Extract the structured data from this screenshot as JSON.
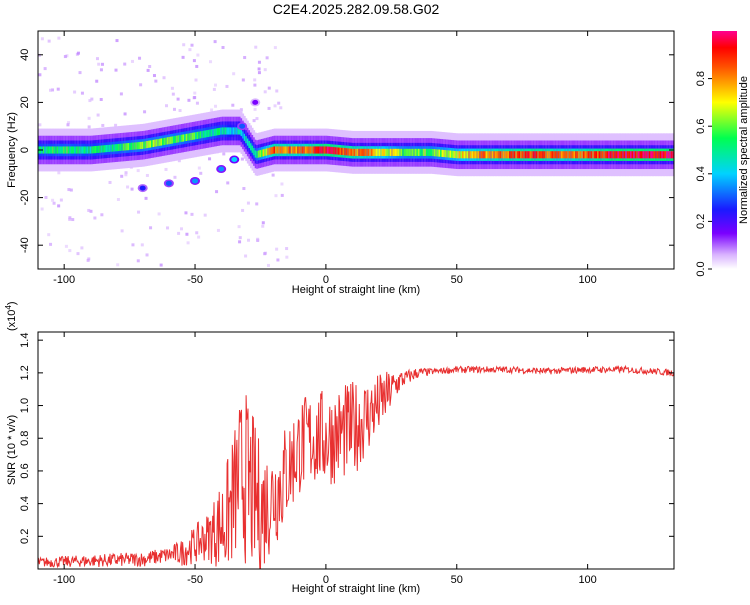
{
  "figure_title": "C2E4.2025.282.09.58.G02",
  "colors": {
    "snr_line": "#e83030",
    "background": "#ffffff",
    "axis": "#000000"
  },
  "chart_data": [
    {
      "type": "heatmap",
      "name": "spectrogram",
      "title": "C2E4.2025.282.09.58.G02",
      "xlabel": "Height of straight line (km)",
      "ylabel": "Frequency (Hz)",
      "xlim": [
        -110,
        133
      ],
      "ylim": [
        -50,
        50
      ],
      "x_ticks": [
        -100,
        -50,
        0,
        50,
        100
      ],
      "y_ticks": [
        -40,
        -20,
        0,
        20,
        40
      ],
      "colorbar": {
        "label": "Normalized spectral amplitude",
        "range": [
          0,
          1
        ],
        "ticks": [
          "0.0",
          "0.2",
          "0.4",
          "0.6",
          "0.8"
        ],
        "tick_values": [
          0,
          0.2,
          0.4,
          0.6,
          0.8
        ]
      },
      "ridge": [
        {
          "x": -110,
          "freq": 0,
          "amp": 0.5
        },
        {
          "x": -100,
          "freq": 0,
          "amp": 0.55
        },
        {
          "x": -90,
          "freq": 0,
          "amp": 0.5
        },
        {
          "x": -80,
          "freq": 1,
          "amp": 0.55
        },
        {
          "x": -70,
          "freq": 2,
          "amp": 0.6
        },
        {
          "x": -60,
          "freq": 4,
          "amp": 0.6
        },
        {
          "x": -50,
          "freq": 6,
          "amp": 0.55
        },
        {
          "x": -40,
          "freq": 8,
          "amp": 0.5
        },
        {
          "x": -33,
          "freq": 8,
          "amp": 0.4
        },
        {
          "x": -27,
          "freq": -2,
          "amp": 0.55
        },
        {
          "x": -20,
          "freq": 0,
          "amp": 0.85
        },
        {
          "x": -10,
          "freq": 0,
          "amp": 0.8
        },
        {
          "x": 0,
          "freq": 0,
          "amp": 0.95
        },
        {
          "x": 10,
          "freq": -1,
          "amp": 0.85
        },
        {
          "x": 20,
          "freq": -1,
          "amp": 0.75
        },
        {
          "x": 30,
          "freq": -1,
          "amp": 0.6
        },
        {
          "x": 40,
          "freq": -1,
          "amp": 0.6
        },
        {
          "x": 50,
          "freq": -2,
          "amp": 0.7
        },
        {
          "x": 60,
          "freq": -2,
          "amp": 0.8
        },
        {
          "x": 70,
          "freq": -2,
          "amp": 0.85
        },
        {
          "x": 80,
          "freq": -2,
          "amp": 0.9
        },
        {
          "x": 90,
          "freq": -2,
          "amp": 0.8
        },
        {
          "x": 100,
          "freq": -2,
          "amp": 0.85
        },
        {
          "x": 110,
          "freq": -2,
          "amp": 0.95
        },
        {
          "x": 120,
          "freq": -2,
          "amp": 0.95
        },
        {
          "x": 133,
          "freq": -2,
          "amp": 0.95
        }
      ],
      "secondary_branch": [
        {
          "x": -70,
          "freq": -16,
          "amp": 0.25
        },
        {
          "x": -60,
          "freq": -14,
          "amp": 0.3
        },
        {
          "x": -50,
          "freq": -13,
          "amp": 0.35
        },
        {
          "x": -40,
          "freq": -8,
          "amp": 0.35
        },
        {
          "x": -35,
          "freq": -4,
          "amp": 0.4
        },
        {
          "x": -32,
          "freq": 10,
          "amp": 0.3
        },
        {
          "x": -27,
          "freq": 20,
          "amp": 0.15
        }
      ]
    },
    {
      "type": "line",
      "name": "snr",
      "xlabel": "Height of straight line (km)",
      "ylabel": "SNR (10 * v/v)",
      "y_scale_label": "(x10",
      "y_scale_exp": "4",
      "y_scale_close": ")",
      "xlim": [
        -110,
        133
      ],
      "ylim": [
        0,
        1.45
      ],
      "x_ticks": [
        -100,
        -50,
        0,
        50,
        100
      ],
      "y_ticks": [
        "0.2",
        "0.4",
        "0.6",
        "0.8",
        "1.0",
        "1.2",
        "1.4"
      ],
      "y_tick_values": [
        0.2,
        0.4,
        0.6,
        0.8,
        1.0,
        1.2,
        1.4
      ],
      "envelope": [
        {
          "x": -110,
          "y": 0.04
        },
        {
          "x": -90,
          "y": 0.05
        },
        {
          "x": -70,
          "y": 0.06
        },
        {
          "x": -55,
          "y": 0.1
        },
        {
          "x": -45,
          "y": 0.2
        },
        {
          "x": -38,
          "y": 0.3
        },
        {
          "x": -32,
          "y": 0.6
        },
        {
          "x": -25,
          "y": 0.35
        },
        {
          "x": -18,
          "y": 0.5
        },
        {
          "x": -10,
          "y": 0.75
        },
        {
          "x": -5,
          "y": 0.8
        },
        {
          "x": 0,
          "y": 0.8
        },
        {
          "x": 10,
          "y": 0.85
        },
        {
          "x": 20,
          "y": 1.0
        },
        {
          "x": 28,
          "y": 1.15
        },
        {
          "x": 35,
          "y": 1.2
        },
        {
          "x": 50,
          "y": 1.22
        },
        {
          "x": 70,
          "y": 1.22
        },
        {
          "x": 85,
          "y": 1.21
        },
        {
          "x": 100,
          "y": 1.22
        },
        {
          "x": 115,
          "y": 1.22
        },
        {
          "x": 133,
          "y": 1.2
        }
      ],
      "noise": [
        {
          "x": -110,
          "amp": 0.03
        },
        {
          "x": -60,
          "amp": 0.05
        },
        {
          "x": -45,
          "amp": 0.15
        },
        {
          "x": -38,
          "amp": 0.35
        },
        {
          "x": -30,
          "amp": 0.55
        },
        {
          "x": -22,
          "amp": 0.35
        },
        {
          "x": -10,
          "amp": 0.3
        },
        {
          "x": 0,
          "amp": 0.3
        },
        {
          "x": 10,
          "amp": 0.3
        },
        {
          "x": 20,
          "amp": 0.2
        },
        {
          "x": 30,
          "amp": 0.05
        },
        {
          "x": 40,
          "amp": 0.02
        },
        {
          "x": 133,
          "amp": 0.02
        }
      ]
    }
  ]
}
